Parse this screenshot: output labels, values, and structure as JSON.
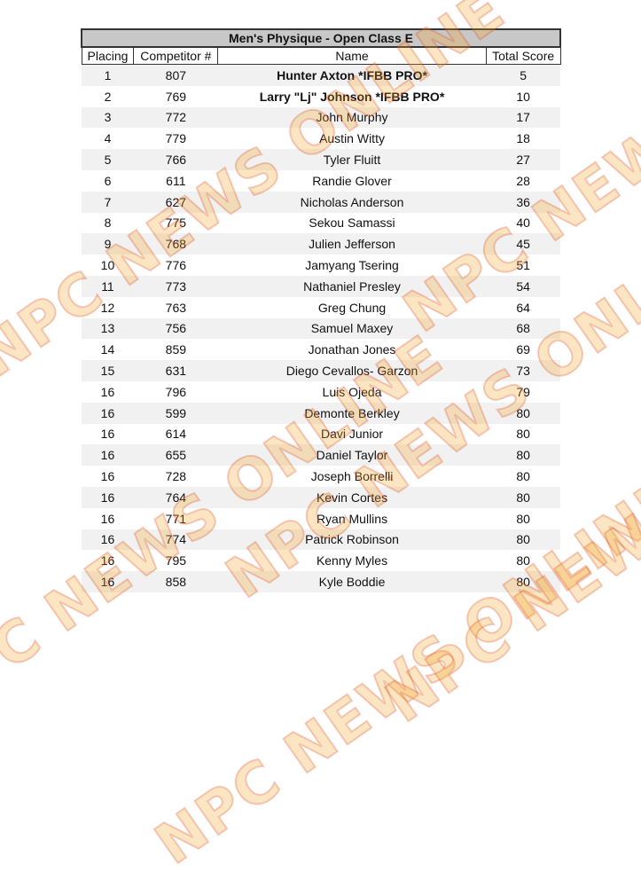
{
  "watermark": "NPC NEWS ONLINE",
  "table": {
    "title": "Men's Physique - Open Class E",
    "headers": [
      "Placing",
      "Competitor #",
      "Name",
      "Total Score"
    ],
    "rows": [
      {
        "placing": "1",
        "competitor": "807",
        "name": "Hunter Axton *IFBB PRO*",
        "score": "5",
        "bold": true
      },
      {
        "placing": "2",
        "competitor": "769",
        "name": "Larry \"Lj\" Johnson *IFBB PRO*",
        "score": "10",
        "bold": true
      },
      {
        "placing": "3",
        "competitor": "772",
        "name": "John Murphy",
        "score": "17"
      },
      {
        "placing": "4",
        "competitor": "779",
        "name": "Austin Witty",
        "score": "18"
      },
      {
        "placing": "5",
        "competitor": "766",
        "name": "Tyler Fluitt",
        "score": "27"
      },
      {
        "placing": "6",
        "competitor": "611",
        "name": "Randie Glover",
        "score": "28"
      },
      {
        "placing": "7",
        "competitor": "627",
        "name": "Nicholas Anderson",
        "score": "36"
      },
      {
        "placing": "8",
        "competitor": "775",
        "name": "Sekou Samassi",
        "score": "40"
      },
      {
        "placing": "9",
        "competitor": "768",
        "name": "Julien Jefferson",
        "score": "45"
      },
      {
        "placing": "10",
        "competitor": "776",
        "name": "Jamyang Tsering",
        "score": "51"
      },
      {
        "placing": "11",
        "competitor": "773",
        "name": "Nathaniel Presley",
        "score": "54"
      },
      {
        "placing": "12",
        "competitor": "763",
        "name": "Greg Chung",
        "score": "64"
      },
      {
        "placing": "13",
        "competitor": "756",
        "name": "Samuel Maxey",
        "score": "68"
      },
      {
        "placing": "14",
        "competitor": "859",
        "name": "Jonathan Jones",
        "score": "69"
      },
      {
        "placing": "15",
        "competitor": "631",
        "name": "Diego Cevallos- Garzon",
        "score": "73"
      },
      {
        "placing": "16",
        "competitor": "796",
        "name": "Luis Ojeda",
        "score": "79"
      },
      {
        "placing": "16",
        "competitor": "599",
        "name": "Demonte Berkley",
        "score": "80"
      },
      {
        "placing": "16",
        "competitor": "614",
        "name": "Davi Junior",
        "score": "80"
      },
      {
        "placing": "16",
        "competitor": "655",
        "name": "Daniel Taylor",
        "score": "80"
      },
      {
        "placing": "16",
        "competitor": "728",
        "name": "Joseph Borrelli",
        "score": "80"
      },
      {
        "placing": "16",
        "competitor": "764",
        "name": "Kevin Cortes",
        "score": "80"
      },
      {
        "placing": "16",
        "competitor": "771",
        "name": "Ryan Mullins",
        "score": "80"
      },
      {
        "placing": "16",
        "competitor": "774",
        "name": "Patrick Robinson",
        "score": "80"
      },
      {
        "placing": "16",
        "competitor": "795",
        "name": "Kenny Myles",
        "score": "80"
      },
      {
        "placing": "16",
        "competitor": "858",
        "name": "Kyle Boddie",
        "score": "80"
      }
    ]
  }
}
